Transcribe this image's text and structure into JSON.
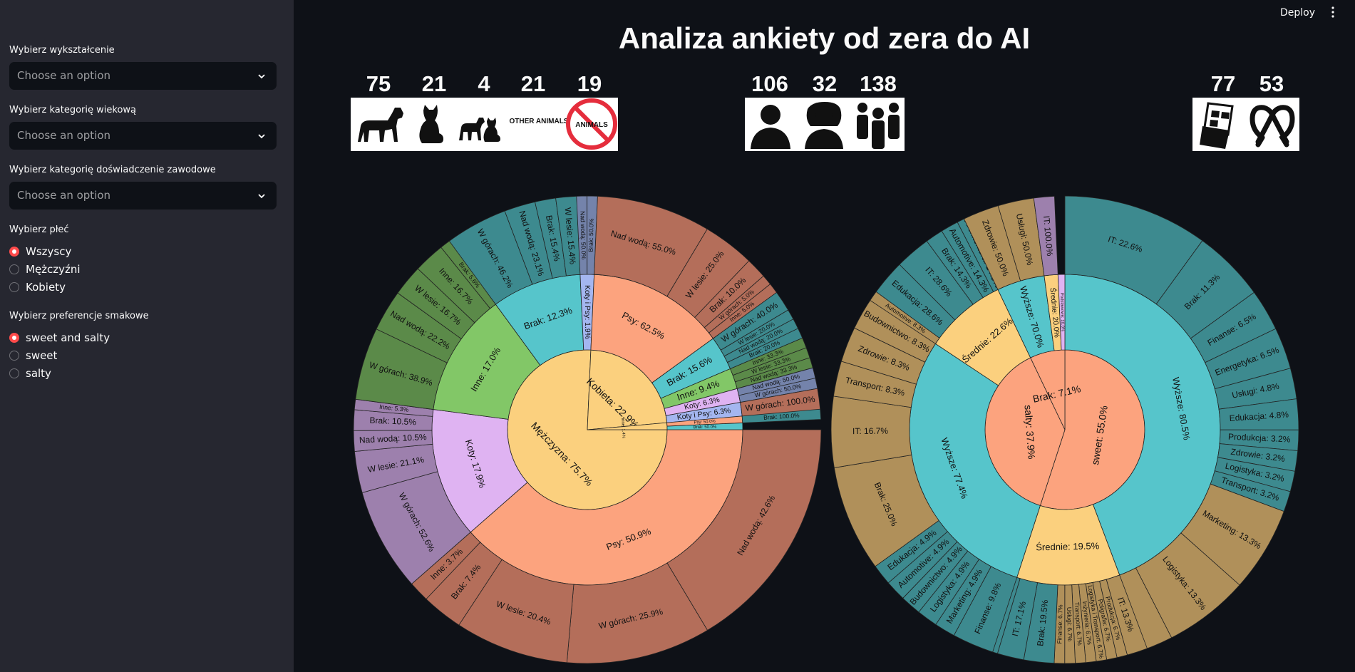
{
  "header": {
    "deploy_label": "Deploy",
    "menu_icon": "kebab-icon"
  },
  "sidebar": {
    "education": {
      "label": "Wybierz wykształcenie",
      "placeholder": "Choose an option"
    },
    "age": {
      "label": "Wybierz kategorię wiekową",
      "placeholder": "Choose an option"
    },
    "experience": {
      "label": "Wybierz kategorię doświadczenie zawodowe",
      "placeholder": "Choose an option"
    },
    "gender": {
      "label": "Wybierz płeć",
      "options": [
        "Wszyscy",
        "Mężczyźni",
        "Kobiety"
      ],
      "selected": "Wszyscy"
    },
    "taste": {
      "label": "Wybierz preferencje smakowe",
      "options": [
        "sweet and salty",
        "sweet",
        "salty"
      ],
      "selected": "sweet and salty"
    },
    "accent": "#ff4b4b"
  },
  "title": "Analiza ankiety od zera do AI",
  "stats": {
    "animals": [
      {
        "count": "75",
        "icon": "dog-icon"
      },
      {
        "count": "21",
        "icon": "cat-icon"
      },
      {
        "count": "4",
        "icon": "dog-and-cat-icon"
      },
      {
        "count": "21",
        "icon": "other-animals-icon",
        "text": "OTHER ANIMALS"
      },
      {
        "count": "19",
        "icon": "no-animals-icon",
        "text": "ANIMALS"
      }
    ],
    "gender": [
      {
        "count": "106",
        "icon": "man-icon"
      },
      {
        "count": "32",
        "icon": "woman-icon"
      },
      {
        "count": "138",
        "icon": "group-icon"
      }
    ],
    "taste": [
      {
        "count": "77",
        "icon": "chocolate-icon"
      },
      {
        "count": "53",
        "icon": "pretzel-icon"
      }
    ]
  },
  "chart_data": [
    {
      "type": "sunburst",
      "rings": [
        [
          {
            "label": "Mężczyzna",
            "value": 75.7,
            "color": "#fbd07e"
          },
          {
            "label": "Kobieta",
            "value": 22.9,
            "color": "#fbd07e"
          },
          {
            "label": "Inne",
            "value": 1.4,
            "color": "#fbd07e"
          }
        ],
        [
          {
            "label": "Psy",
            "value": 50.9,
            "parent": "Mężczyzna",
            "color": "#fca37e"
          },
          {
            "label": "Koty",
            "value": 17.9,
            "parent": "Mężczyzna",
            "color": "#dfb3f2"
          },
          {
            "label": "Inne",
            "value": 17.0,
            "parent": "Mężczyzna",
            "color": "#82c767"
          },
          {
            "label": "Brak",
            "value": 12.3,
            "parent": "Mężczyzna",
            "color": "#56c5cb"
          },
          {
            "label": "Koty i Psy",
            "value": 1.9,
            "parent": "Mężczyzna",
            "color": "#a4b6f0"
          },
          {
            "label": "Psy",
            "value": 62.5,
            "parent": "Kobieta",
            "color": "#fca37e"
          },
          {
            "label": "Brak",
            "value": 15.6,
            "parent": "Kobieta",
            "color": "#56c5cb"
          },
          {
            "label": "Inne",
            "value": 9.4,
            "parent": "Kobieta",
            "color": "#82c767"
          },
          {
            "label": "Koty",
            "value": 6.3,
            "parent": "Kobieta",
            "color": "#dfb3f2"
          },
          {
            "label": "Koty i Psy",
            "value": 6.3,
            "parent": "Kobieta",
            "color": "#a4b6f0"
          },
          {
            "label": "Psy",
            "value": 50.0,
            "parent": "Inne",
            "color": "#fca37e"
          },
          {
            "label": "Brak",
            "value": 50.0,
            "parent": "Inne",
            "color": "#56c5cb"
          }
        ],
        [
          {
            "label": "Nad wodą",
            "value": 42.6,
            "parent": "Psy",
            "color": "#b46e5a"
          },
          {
            "label": "W górach",
            "value": 25.9,
            "parent": "Psy",
            "color": "#b46e5a"
          },
          {
            "label": "W lesie",
            "value": 20.4,
            "parent": "Psy",
            "color": "#b46e5a"
          },
          {
            "label": "Brak",
            "value": 7.4,
            "parent": "Psy",
            "color": "#b46e5a"
          },
          {
            "label": "Inne",
            "value": 3.7,
            "parent": "Psy",
            "color": "#b46e5a"
          },
          {
            "label": "W górach",
            "value": 52.6,
            "parent": "Koty",
            "color": "#9d80ad"
          },
          {
            "label": "W lesie",
            "value": 21.1,
            "parent": "Koty",
            "color": "#9d80ad"
          },
          {
            "label": "Nad wodą",
            "value": 10.5,
            "parent": "Koty",
            "color": "#9d80ad"
          },
          {
            "label": "Brak",
            "value": 10.5,
            "parent": "Koty",
            "color": "#9d80ad"
          },
          {
            "label": "Inne",
            "value": 5.3,
            "parent": "Koty",
            "color": "#9d80ad"
          },
          {
            "label": "W górach",
            "value": 38.9,
            "parent": "Inne",
            "color": "#5b8a49"
          },
          {
            "label": "Nad wodą",
            "value": 22.2,
            "parent": "Inne",
            "color": "#5b8a49"
          },
          {
            "label": "W lesie",
            "value": 16.7,
            "parent": "Inne",
            "color": "#5b8a49"
          },
          {
            "label": "Inne",
            "value": 16.7,
            "parent": "Inne",
            "color": "#5b8a49"
          },
          {
            "label": "Brak",
            "value": 5.6,
            "parent": "Inne",
            "color": "#5b8a49"
          },
          {
            "label": "W górach",
            "value": 46.2,
            "parent": "Brak",
            "color": "#3d8a8f"
          },
          {
            "label": "Nad wodą",
            "value": 23.1,
            "parent": "Brak",
            "color": "#3d8a8f"
          },
          {
            "label": "Brak",
            "value": 15.4,
            "parent": "Brak",
            "color": "#3d8a8f"
          },
          {
            "label": "W lesie",
            "value": 15.4,
            "parent": "Brak",
            "color": "#3d8a8f"
          },
          {
            "label": "Nad wodą",
            "value": 50.0,
            "parent": "Koty i Psy",
            "color": "#7483ab"
          },
          {
            "label": "Brak",
            "value": 50.0,
            "parent": "Koty i Psy",
            "color": "#7483ab"
          },
          {
            "label": "Nad wodą",
            "value": 55.0,
            "parent": "Psy",
            "color": "#b46e5a"
          },
          {
            "label": "W lesie",
            "value": 25.0,
            "parent": "Psy",
            "color": "#b46e5a"
          },
          {
            "label": "Brak",
            "value": 10.0,
            "parent": "Psy",
            "color": "#b46e5a"
          },
          {
            "label": "W górach",
            "value": 5.0,
            "parent": "Psy",
            "color": "#b46e5a"
          },
          {
            "label": "Inne",
            "value": 5.0,
            "parent": "Psy",
            "color": "#b46e5a"
          },
          {
            "label": "W górach",
            "value": 40.0,
            "parent": "Brak",
            "color": "#3d8a8f"
          },
          {
            "label": "W lesie",
            "value": 20.0,
            "parent": "Brak",
            "color": "#3d8a8f"
          },
          {
            "label": "Nad wodą",
            "value": 20.0,
            "parent": "Brak",
            "color": "#3d8a8f"
          },
          {
            "label": "Brak",
            "value": 20.0,
            "parent": "Brak",
            "color": "#3d8a8f"
          },
          {
            "label": "Inne",
            "value": 33.3,
            "parent": "Inne",
            "color": "#5b8a49"
          },
          {
            "label": "W lesie",
            "value": 33.3,
            "parent": "Inne",
            "color": "#5b8a49"
          },
          {
            "label": "Nad wodą",
            "value": 33.3,
            "parent": "Inne",
            "color": "#5b8a49"
          },
          {
            "label": "W górach",
            "value": 100.0,
            "parent": "Koty",
            "color": "#9d80ad"
          },
          {
            "label": "Nad wodą",
            "value": 50.0,
            "parent": "Koty i Psy",
            "color": "#7483ab"
          },
          {
            "label": "W górach",
            "value": 50.0,
            "parent": "Koty i Psy",
            "color": "#7483ab"
          },
          {
            "label": "W górach",
            "value": 100.0,
            "parent": "Psy",
            "color": "#b46e5a"
          },
          {
            "label": "Brak",
            "value": 100.0,
            "parent": "Brak",
            "color": "#3d8a8f"
          }
        ]
      ]
    },
    {
      "type": "sunburst",
      "rings": [
        [
          {
            "label": "sweet",
            "value": 55.0,
            "color": "#fca37e"
          },
          {
            "label": "salty",
            "value": 37.9,
            "color": "#fca37e"
          },
          {
            "label": "Brak",
            "value": 7.1,
            "color": "#fca37e"
          }
        ],
        [
          {
            "label": "Wyższe",
            "value": 80.5,
            "parent": "sweet",
            "color": "#56c5cb"
          },
          {
            "label": "Średnie",
            "value": 19.5,
            "parent": "sweet",
            "color": "#fbd07e"
          },
          {
            "label": "Wyższe",
            "value": 77.4,
            "parent": "salty",
            "color": "#56c5cb"
          },
          {
            "label": "Średnie",
            "value": 22.6,
            "parent": "salty",
            "color": "#fbd07e"
          },
          {
            "label": "Wyższe",
            "value": 70.0,
            "parent": "Brak",
            "color": "#56c5cb"
          },
          {
            "label": "Średnie",
            "value": 20.0,
            "parent": "Brak",
            "color": "#fbd07e"
          },
          {
            "label": "Podstawowe",
            "value": 10.0,
            "parent": "Brak",
            "color": "#dfb3f2"
          }
        ],
        [
          {
            "label": "IT",
            "value": 22.6,
            "parent": "Wyższe",
            "color": "#3d8a8f"
          },
          {
            "label": "Brak",
            "value": 11.3,
            "parent": "Wyższe",
            "color": "#3d8a8f"
          },
          {
            "label": "Finanse",
            "value": 6.5,
            "parent": "Wyższe",
            "color": "#3d8a8f"
          },
          {
            "label": "Energetyka",
            "value": 6.5,
            "parent": "Wyższe",
            "color": "#3d8a8f"
          },
          {
            "label": "Usługi",
            "value": 4.8,
            "parent": "Wyższe",
            "color": "#3d8a8f"
          },
          {
            "label": "Edukacja",
            "value": 4.8,
            "parent": "Wyższe",
            "color": "#3d8a8f"
          },
          {
            "label": "Produkcja",
            "value": 3.2,
            "parent": "Wyższe",
            "color": "#3d8a8f"
          },
          {
            "label": "Zdrowie",
            "value": 3.2,
            "parent": "Wyższe",
            "color": "#3d8a8f"
          },
          {
            "label": "Logistyka",
            "value": 3.2,
            "parent": "Wyższe",
            "color": "#3d8a8f"
          },
          {
            "label": "Transport",
            "value": 3.2,
            "parent": "Wyższe",
            "color": "#3d8a8f"
          },
          {
            "label": "Marketing",
            "value": 13.3,
            "parent": "Średnie",
            "color": "#b0905a"
          },
          {
            "label": "Logistyka",
            "value": 13.3,
            "parent": "Średnie",
            "color": "#b0905a"
          },
          {
            "label": "Brak",
            "value": 13.3,
            "parent": "Średnie",
            "color": "#b0905a"
          },
          {
            "label": "IT",
            "value": 13.3,
            "parent": "Średnie",
            "color": "#b0905a"
          },
          {
            "label": "Produkcja",
            "value": 6.7,
            "parent": "Średnie",
            "color": "#b0905a"
          },
          {
            "label": "Poligrafia",
            "value": 6.7,
            "parent": "Średnie",
            "color": "#b0905a"
          },
          {
            "label": "Logistyka i Transport",
            "value": 6.7,
            "parent": "Średnie",
            "color": "#b0905a"
          },
          {
            "label": "Inżynieria",
            "value": 6.7,
            "parent": "Średnie",
            "color": "#b0905a"
          },
          {
            "label": "Transport",
            "value": 6.7,
            "parent": "Średnie",
            "color": "#b0905a"
          },
          {
            "label": "Usługi",
            "value": 6.7,
            "parent": "Średnie",
            "color": "#b0905a"
          },
          {
            "label": "Finanse",
            "value": 6.7,
            "parent": "Średnie",
            "color": "#b0905a"
          },
          {
            "label": "Brak",
            "value": 19.5,
            "parent": "Wyższe",
            "color": "#3d8a8f"
          },
          {
            "label": "IT",
            "value": 17.1,
            "parent": "Wyższe",
            "color": "#3d8a8f"
          },
          {
            "label": "Zdrowie",
            "value": 9.8,
            "parent": "Wyższe",
            "color": "#3d8a8f"
          },
          {
            "label": "Finanse",
            "value": 9.8,
            "parent": "Wyższe",
            "color": "#3d8a8f"
          },
          {
            "label": "Marketing",
            "value": 4.9,
            "parent": "Wyższe",
            "color": "#3d8a8f"
          },
          {
            "label": "Logistyka",
            "value": 4.9,
            "parent": "Wyższe",
            "color": "#3d8a8f"
          },
          {
            "label": "Budownictwo",
            "value": 4.9,
            "parent": "Wyższe",
            "color": "#3d8a8f"
          },
          {
            "label": "Automotive",
            "value": 4.9,
            "parent": "Wyższe",
            "color": "#3d8a8f"
          },
          {
            "label": "Edukacja",
            "value": 4.9,
            "parent": "Wyższe",
            "color": "#3d8a8f"
          },
          {
            "label": "Brak",
            "value": 25.0,
            "parent": "Średnie",
            "color": "#b0905a"
          },
          {
            "label": "IT",
            "value": 16.7,
            "parent": "Średnie",
            "color": "#b0905a"
          },
          {
            "label": "Transport",
            "value": 8.3,
            "parent": "Średnie",
            "color": "#b0905a"
          },
          {
            "label": "Zdrowie",
            "value": 8.3,
            "parent": "Średnie",
            "color": "#b0905a"
          },
          {
            "label": "Budownictwo",
            "value": 8.3,
            "parent": "Średnie",
            "color": "#b0905a"
          },
          {
            "label": "Automotive",
            "value": 8.3,
            "parent": "Średnie",
            "color": "#b0905a"
          },
          {
            "label": "Edukacja",
            "value": 28.6,
            "parent": "Wyższe",
            "color": "#3d8a8f"
          },
          {
            "label": "IT",
            "value": 28.6,
            "parent": "Wyższe",
            "color": "#3d8a8f"
          },
          {
            "label": "Brak",
            "value": 14.3,
            "parent": "Wyższe",
            "color": "#3d8a8f"
          },
          {
            "label": "Automotive",
            "value": 14.3,
            "parent": "Wyższe",
            "color": "#3d8a8f"
          },
          {
            "label": "Architektura",
            "value": 14.3,
            "parent": "Wyższe",
            "color": "#3d8a8f"
          },
          {
            "label": "Zdrowie",
            "value": 50.0,
            "parent": "Średnie",
            "color": "#b0905a"
          },
          {
            "label": "Usługi",
            "value": 50.0,
            "parent": "Średnie",
            "color": "#b0905a"
          },
          {
            "label": "IT",
            "value": 100.0,
            "parent": "Podstawowe",
            "color": "#9d80ad"
          }
        ]
      ]
    }
  ]
}
